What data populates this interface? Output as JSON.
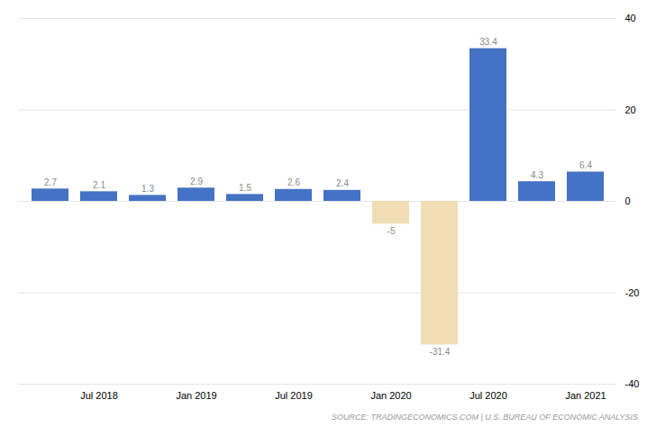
{
  "chart_data": {
    "type": "bar",
    "categories": [
      null,
      "Jul 2018",
      null,
      "Jan 2019",
      null,
      "Jul 2019",
      null,
      "Jan 2020",
      null,
      "Jul 2020",
      null,
      "Jan 2021"
    ],
    "values": [
      2.7,
      2.1,
      1.3,
      2.9,
      1.5,
      2.6,
      2.4,
      -5.0,
      -31.4,
      33.4,
      4.3,
      6.4
    ],
    "colors": [
      "#4472C4",
      "#4472C4",
      "#4472C4",
      "#4472C4",
      "#4472C4",
      "#4472C4",
      "#4472C4",
      "#f0ddb4",
      "#f0ddb4",
      "#4472C4",
      "#4472C4",
      "#4472C4"
    ],
    "ylim": [
      -40,
      40
    ],
    "yticks": [
      -40,
      -20,
      0,
      20,
      40
    ],
    "grid": true,
    "data_labels": true,
    "annotations": [
      "SOURCE: TRADINGECONOMICS.COM | U.S. BUREAU OF ECONOMIC ANALYSIS"
    ]
  }
}
